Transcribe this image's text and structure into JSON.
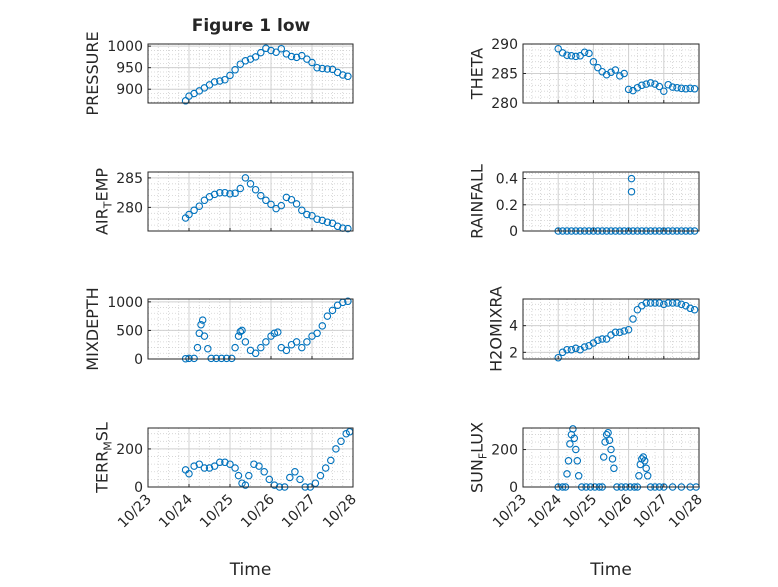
{
  "figure_title": "Figure 1 low",
  "xlabel": "Time",
  "colors": {
    "marker": "#0072BD",
    "axis": "#262626",
    "grid": "#d0d0d0"
  },
  "x_ticks": [
    "10/23",
    "10/24",
    "10/25",
    "10/26",
    "10/27",
    "10/28"
  ],
  "chart_data": [
    {
      "id": "pressure",
      "type": "scatter",
      "ylabel": "PRESSURE",
      "ylim": [
        868,
        1005
      ],
      "yticks": [
        900,
        950,
        1000
      ],
      "xlim": [
        "2017-10-23",
        "2017-10-28"
      ],
      "grid": true,
      "x": [
        "2017-10-23 22:00",
        "2017-10-24 00:00",
        "2017-10-24 03:00",
        "2017-10-24 06:00",
        "2017-10-24 09:00",
        "2017-10-24 12:00",
        "2017-10-24 15:00",
        "2017-10-24 18:00",
        "2017-10-24 21:00",
        "2017-10-25 00:00",
        "2017-10-25 03:00",
        "2017-10-25 06:00",
        "2017-10-25 09:00",
        "2017-10-25 12:00",
        "2017-10-25 15:00",
        "2017-10-25 18:00",
        "2017-10-25 21:00",
        "2017-10-26 00:00",
        "2017-10-26 03:00",
        "2017-10-26 06:00",
        "2017-10-26 09:00",
        "2017-10-26 12:00",
        "2017-10-26 15:00",
        "2017-10-26 18:00",
        "2017-10-26 21:00",
        "2017-10-27 00:00",
        "2017-10-27 03:00",
        "2017-10-27 06:00",
        "2017-10-27 09:00",
        "2017-10-27 12:00",
        "2017-10-27 15:00",
        "2017-10-27 18:00",
        "2017-10-27 21:00"
      ],
      "y": [
        873,
        884,
        890,
        896,
        903,
        910,
        917,
        919,
        922,
        932,
        945,
        958,
        966,
        970,
        975,
        985,
        995,
        990,
        986,
        994,
        982,
        976,
        974,
        978,
        970,
        962,
        950,
        948,
        947,
        946,
        939,
        933,
        930
      ]
    },
    {
      "id": "theta",
      "type": "scatter",
      "ylabel": "THETA",
      "ylim": [
        280,
        290
      ],
      "yticks": [
        280,
        285,
        290
      ],
      "xlim": [
        "2017-10-23",
        "2017-10-28"
      ],
      "grid": true,
      "x": [
        "2017-10-24 00:00",
        "2017-10-24 03:00",
        "2017-10-24 06:00",
        "2017-10-24 09:00",
        "2017-10-24 12:00",
        "2017-10-24 15:00",
        "2017-10-24 18:00",
        "2017-10-24 21:00",
        "2017-10-25 00:00",
        "2017-10-25 03:00",
        "2017-10-25 06:00",
        "2017-10-25 09:00",
        "2017-10-25 12:00",
        "2017-10-25 15:00",
        "2017-10-25 18:00",
        "2017-10-25 21:00",
        "2017-10-26 00:00",
        "2017-10-26 03:00",
        "2017-10-26 06:00",
        "2017-10-26 09:00",
        "2017-10-26 12:00",
        "2017-10-26 15:00",
        "2017-10-26 18:00",
        "2017-10-26 21:00",
        "2017-10-27 00:00",
        "2017-10-27 03:00",
        "2017-10-27 06:00",
        "2017-10-27 09:00",
        "2017-10-27 12:00",
        "2017-10-27 15:00",
        "2017-10-27 18:00",
        "2017-10-27 21:00"
      ],
      "y": [
        289.2,
        288.5,
        288.1,
        288.0,
        287.9,
        288.0,
        288.6,
        288.4,
        287.0,
        286.0,
        285.3,
        284.8,
        285.2,
        285.6,
        284.6,
        285.0,
        282.3,
        282.1,
        282.6,
        283.0,
        283.2,
        283.4,
        283.2,
        282.8,
        282.0,
        283.1,
        282.7,
        282.6,
        282.5,
        282.4,
        282.5,
        282.4
      ]
    },
    {
      "id": "air_temp",
      "type": "scatter",
      "ylabel": "AIR_TEMP",
      "ylim": [
        276,
        286
      ],
      "yticks": [
        280,
        285
      ],
      "xlim": [
        "2017-10-23",
        "2017-10-28"
      ],
      "grid": true,
      "x": [
        "2017-10-23 22:00",
        "2017-10-24 00:00",
        "2017-10-24 03:00",
        "2017-10-24 06:00",
        "2017-10-24 09:00",
        "2017-10-24 12:00",
        "2017-10-24 15:00",
        "2017-10-24 18:00",
        "2017-10-24 21:00",
        "2017-10-25 00:00",
        "2017-10-25 03:00",
        "2017-10-25 06:00",
        "2017-10-25 09:00",
        "2017-10-25 12:00",
        "2017-10-25 15:00",
        "2017-10-25 18:00",
        "2017-10-25 21:00",
        "2017-10-26 00:00",
        "2017-10-26 03:00",
        "2017-10-26 06:00",
        "2017-10-26 09:00",
        "2017-10-26 12:00",
        "2017-10-26 15:00",
        "2017-10-26 18:00",
        "2017-10-26 21:00",
        "2017-10-27 00:00",
        "2017-10-27 03:00",
        "2017-10-27 06:00",
        "2017-10-27 09:00",
        "2017-10-27 12:00",
        "2017-10-27 15:00",
        "2017-10-27 18:00",
        "2017-10-27 21:00"
      ],
      "y": [
        278.2,
        278.8,
        279.5,
        280.2,
        281.2,
        281.8,
        282.2,
        282.5,
        282.5,
        282.3,
        282.4,
        283.2,
        285.0,
        284.0,
        283.0,
        282.0,
        281.2,
        280.5,
        279.8,
        280.3,
        281.7,
        281.3,
        280.6,
        279.5,
        278.8,
        278.6,
        278.0,
        277.8,
        277.5,
        277.3,
        276.8,
        276.5,
        276.4
      ]
    },
    {
      "id": "rainfall",
      "type": "scatter",
      "ylabel": "RAINFALL",
      "ylim": [
        0,
        0.45
      ],
      "yticks": [
        0,
        0.2,
        0.4
      ],
      "xlim": [
        "2017-10-23",
        "2017-10-28"
      ],
      "grid": true,
      "x": [
        "2017-10-24 00:00",
        "2017-10-24 03:00",
        "2017-10-24 06:00",
        "2017-10-24 09:00",
        "2017-10-24 12:00",
        "2017-10-24 15:00",
        "2017-10-24 18:00",
        "2017-10-24 21:00",
        "2017-10-25 00:00",
        "2017-10-25 03:00",
        "2017-10-25 06:00",
        "2017-10-25 09:00",
        "2017-10-25 12:00",
        "2017-10-25 15:00",
        "2017-10-25 18:00",
        "2017-10-25 21:00",
        "2017-10-26 00:00",
        "2017-10-26 02:00",
        "2017-10-26 02:00",
        "2017-10-26 03:00",
        "2017-10-26 06:00",
        "2017-10-26 09:00",
        "2017-10-26 12:00",
        "2017-10-26 15:00",
        "2017-10-26 18:00",
        "2017-10-26 21:00",
        "2017-10-27 00:00",
        "2017-10-27 03:00",
        "2017-10-27 06:00",
        "2017-10-27 09:00",
        "2017-10-27 12:00",
        "2017-10-27 15:00",
        "2017-10-27 18:00",
        "2017-10-27 21:00"
      ],
      "y": [
        0,
        0,
        0,
        0,
        0,
        0,
        0,
        0,
        0,
        0,
        0,
        0,
        0,
        0,
        0,
        0,
        0,
        0.3,
        0.4,
        0,
        0,
        0,
        0,
        0,
        0,
        0,
        0,
        0,
        0,
        0,
        0,
        0,
        0,
        0
      ]
    },
    {
      "id": "mixdepth",
      "type": "scatter",
      "ylabel": "MIXDEPTH",
      "ylim": [
        0,
        1050
      ],
      "yticks": [
        0,
        500,
        1000
      ],
      "xlim": [
        "2017-10-23",
        "2017-10-28"
      ],
      "grid": true,
      "x": [
        "2017-10-23 22:00",
        "2017-10-24 00:00",
        "2017-10-24 03:00",
        "2017-10-24 05:00",
        "2017-10-24 06:00",
        "2017-10-24 07:00",
        "2017-10-24 08:00",
        "2017-10-24 09:00",
        "2017-10-24 11:00",
        "2017-10-24 13:00",
        "2017-10-24 16:00",
        "2017-10-24 19:00",
        "2017-10-24 22:00",
        "2017-10-25 01:00",
        "2017-10-25 03:00",
        "2017-10-25 05:00",
        "2017-10-25 06:00",
        "2017-10-25 07:00",
        "2017-10-25 09:00",
        "2017-10-25 12:00",
        "2017-10-25 15:00",
        "2017-10-25 18:00",
        "2017-10-25 21:00",
        "2017-10-26 00:00",
        "2017-10-26 02:00",
        "2017-10-26 04:00",
        "2017-10-26 06:00",
        "2017-10-26 09:00",
        "2017-10-26 12:00",
        "2017-10-26 15:00",
        "2017-10-26 18:00",
        "2017-10-26 21:00",
        "2017-10-27 00:00",
        "2017-10-27 03:00",
        "2017-10-27 06:00",
        "2017-10-27 09:00",
        "2017-10-27 12:00",
        "2017-10-27 15:00",
        "2017-10-27 18:00",
        "2017-10-27 21:00"
      ],
      "y": [
        5,
        10,
        10,
        200,
        450,
        600,
        680,
        400,
        180,
        10,
        10,
        10,
        10,
        10,
        200,
        400,
        480,
        500,
        300,
        150,
        100,
        200,
        300,
        400,
        450,
        470,
        200,
        150,
        250,
        300,
        200,
        300,
        400,
        450,
        580,
        750,
        850,
        940,
        990,
        1010
      ]
    },
    {
      "id": "h2omixra",
      "type": "scatter",
      "ylabel": "H2OMIXRA",
      "ylim": [
        1.5,
        6
      ],
      "yticks": [
        2,
        4
      ],
      "xlim": [
        "2017-10-23",
        "2017-10-28"
      ],
      "grid": true,
      "x": [
        "2017-10-24 00:00",
        "2017-10-24 03:00",
        "2017-10-24 06:00",
        "2017-10-24 09:00",
        "2017-10-24 12:00",
        "2017-10-24 15:00",
        "2017-10-24 18:00",
        "2017-10-24 21:00",
        "2017-10-25 00:00",
        "2017-10-25 03:00",
        "2017-10-25 06:00",
        "2017-10-25 09:00",
        "2017-10-25 12:00",
        "2017-10-25 15:00",
        "2017-10-25 18:00",
        "2017-10-25 21:00",
        "2017-10-26 00:00",
        "2017-10-26 03:00",
        "2017-10-26 06:00",
        "2017-10-26 09:00",
        "2017-10-26 12:00",
        "2017-10-26 15:00",
        "2017-10-26 18:00",
        "2017-10-26 21:00",
        "2017-10-27 00:00",
        "2017-10-27 03:00",
        "2017-10-27 06:00",
        "2017-10-27 09:00",
        "2017-10-27 12:00",
        "2017-10-27 15:00",
        "2017-10-27 18:00",
        "2017-10-27 21:00"
      ],
      "y": [
        1.6,
        2.0,
        2.2,
        2.2,
        2.3,
        2.2,
        2.4,
        2.5,
        2.7,
        2.9,
        3.0,
        3.0,
        3.3,
        3.5,
        3.5,
        3.6,
        3.7,
        4.5,
        5.2,
        5.5,
        5.7,
        5.7,
        5.7,
        5.7,
        5.6,
        5.7,
        5.7,
        5.7,
        5.6,
        5.5,
        5.3,
        5.2
      ]
    },
    {
      "id": "terr_msl",
      "type": "scatter",
      "ylabel": "TERR_MSL",
      "ylim": [
        0,
        310
      ],
      "yticks": [
        0,
        200
      ],
      "xlim": [
        "2017-10-23",
        "2017-10-28"
      ],
      "grid": true,
      "x": [
        "2017-10-23 22:00",
        "2017-10-24 00:00",
        "2017-10-24 03:00",
        "2017-10-24 06:00",
        "2017-10-24 09:00",
        "2017-10-24 12:00",
        "2017-10-24 15:00",
        "2017-10-24 18:00",
        "2017-10-24 21:00",
        "2017-10-25 00:00",
        "2017-10-25 03:00",
        "2017-10-25 05:00",
        "2017-10-25 07:00",
        "2017-10-25 09:00",
        "2017-10-25 11:00",
        "2017-10-25 14:00",
        "2017-10-25 17:00",
        "2017-10-25 20:00",
        "2017-10-25 23:00",
        "2017-10-26 02:00",
        "2017-10-26 05:00",
        "2017-10-26 08:00",
        "2017-10-26 11:00",
        "2017-10-26 14:00",
        "2017-10-26 17:00",
        "2017-10-26 20:00",
        "2017-10-26 23:00",
        "2017-10-27 02:00",
        "2017-10-27 05:00",
        "2017-10-27 08:00",
        "2017-10-27 11:00",
        "2017-10-27 14:00",
        "2017-10-27 17:00",
        "2017-10-27 20:00",
        "2017-10-27 22:00"
      ],
      "y": [
        90,
        70,
        110,
        120,
        100,
        100,
        110,
        130,
        130,
        120,
        100,
        60,
        20,
        10,
        60,
        120,
        110,
        80,
        40,
        10,
        0,
        0,
        50,
        80,
        40,
        0,
        0,
        20,
        60,
        100,
        140,
        200,
        240,
        280,
        290
      ]
    },
    {
      "id": "sun_flux",
      "type": "scatter",
      "ylabel": "SUN_FLUX",
      "ylim": [
        0,
        315
      ],
      "yticks": [
        0,
        200
      ],
      "xlim": [
        "2017-10-23",
        "2017-10-28"
      ],
      "grid": true,
      "x": [
        "2017-10-24 00:00",
        "2017-10-24 03:00",
        "2017-10-24 05:00",
        "2017-10-24 06:00",
        "2017-10-24 07:00",
        "2017-10-24 08:00",
        "2017-10-24 09:00",
        "2017-10-24 10:00",
        "2017-10-24 11:00",
        "2017-10-24 12:00",
        "2017-10-24 13:00",
        "2017-10-24 14:00",
        "2017-10-24 16:00",
        "2017-10-24 19:00",
        "2017-10-24 22:00",
        "2017-10-25 01:00",
        "2017-10-25 04:00",
        "2017-10-25 06:00",
        "2017-10-25 07:00",
        "2017-10-25 08:00",
        "2017-10-25 09:00",
        "2017-10-25 10:00",
        "2017-10-25 11:00",
        "2017-10-25 12:00",
        "2017-10-25 13:00",
        "2017-10-25 14:00",
        "2017-10-25 16:00",
        "2017-10-25 19:00",
        "2017-10-25 22:00",
        "2017-10-26 01:00",
        "2017-10-26 04:00",
        "2017-10-26 06:00",
        "2017-10-26 07:00",
        "2017-10-26 08:00",
        "2017-10-26 09:00",
        "2017-10-26 10:00",
        "2017-10-26 11:00",
        "2017-10-26 12:00",
        "2017-10-26 13:00",
        "2017-10-26 15:00",
        "2017-10-26 18:00",
        "2017-10-26 21:00",
        "2017-10-27 00:00",
        "2017-10-27 06:00",
        "2017-10-27 12:00",
        "2017-10-27 18:00",
        "2017-10-27 22:00"
      ],
      "y": [
        0,
        0,
        0,
        70,
        140,
        230,
        280,
        310,
        260,
        200,
        140,
        60,
        0,
        0,
        0,
        0,
        0,
        0,
        160,
        240,
        280,
        290,
        250,
        200,
        150,
        100,
        0,
        0,
        0,
        0,
        0,
        0,
        60,
        120,
        150,
        160,
        140,
        100,
        60,
        0,
        0,
        0,
        0,
        0,
        0,
        0,
        0
      ]
    }
  ]
}
